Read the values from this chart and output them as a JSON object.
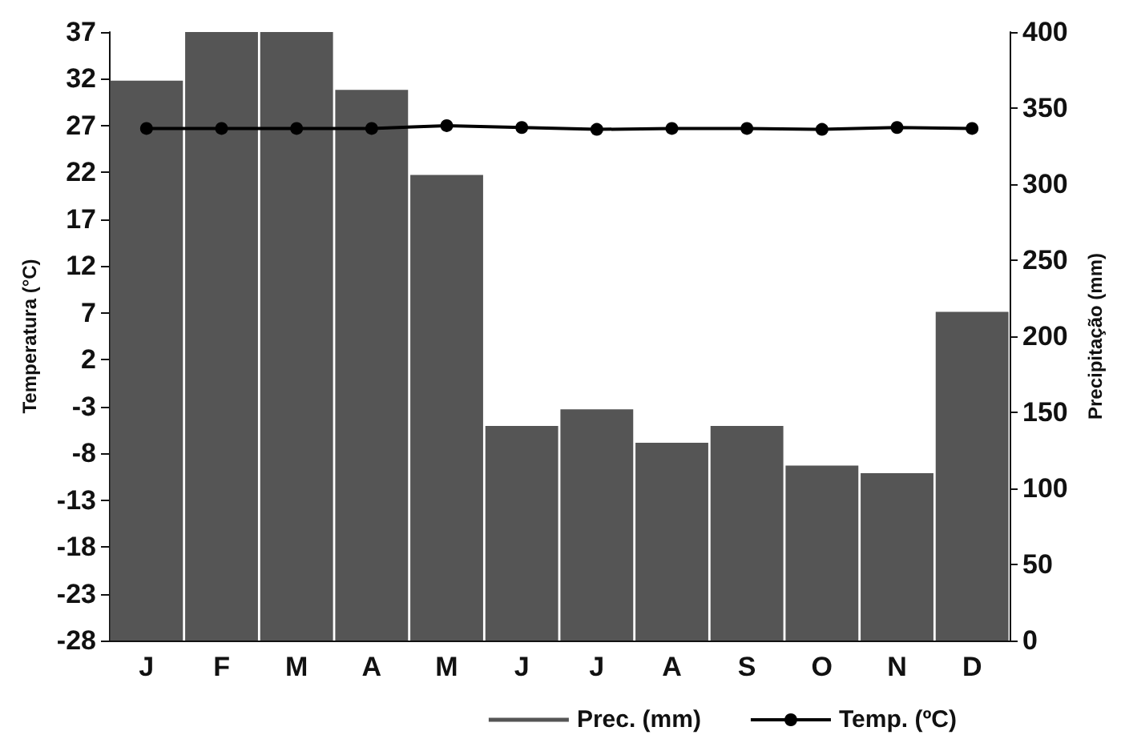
{
  "chart_data": {
    "type": "bar",
    "categories": [
      "J",
      "F",
      "M",
      "A",
      "M",
      "J",
      "J",
      "A",
      "S",
      "O",
      "N",
      "D"
    ],
    "ylabel": "Temperatura (°C)",
    "y2label": "Precipitação (mm)",
    "series": [
      {
        "name": "Prec. (mm)",
        "axis": "y2",
        "color": "#555555",
        "values": [
          368,
          400,
          400,
          362,
          306,
          141,
          152,
          130,
          141,
          115,
          110,
          216
        ]
      },
      {
        "name": "Temp. (ºC)",
        "type": "line",
        "color": "#000000",
        "marker": "circle",
        "values": [
          26.7,
          26.7,
          26.7,
          26.7,
          27,
          26.8,
          26.6,
          26.7,
          26.7,
          26.6,
          26.8,
          26.7
        ]
      }
    ],
    "ylim": [
      -28,
      37
    ],
    "yticks": [
      -28,
      -23,
      -18,
      -13,
      -8,
      -3,
      2,
      7,
      12,
      17,
      22,
      27,
      32,
      37
    ],
    "y2lim": [
      0,
      400
    ],
    "y2ticks": [
      0,
      50,
      100,
      150,
      200,
      250,
      300,
      350,
      400
    ],
    "grid": false,
    "legend": "bottom right"
  }
}
